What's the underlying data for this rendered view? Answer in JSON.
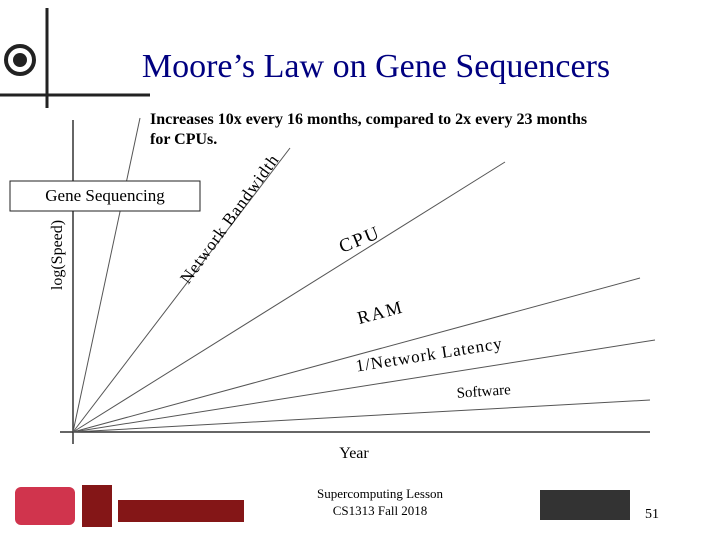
{
  "header": {
    "title": "Moore’s Law on Gene Sequencers"
  },
  "subtitle": {
    "lines": [
      "Increases 10x every 16 months, compared to 2x every 23 months",
      "for CPUs."
    ]
  },
  "diagram": {
    "y_label": "log(Speed)",
    "x_label": "Year",
    "curves": [
      "Gene Sequencing",
      "Network Bandwidth",
      "CPU",
      "RAM",
      "1/Network Latency",
      "Software"
    ]
  },
  "footer": {
    "lines": [
      "Supercomputing Lesson",
      "CS1313 Fall 2018"
    ],
    "page": "51"
  }
}
